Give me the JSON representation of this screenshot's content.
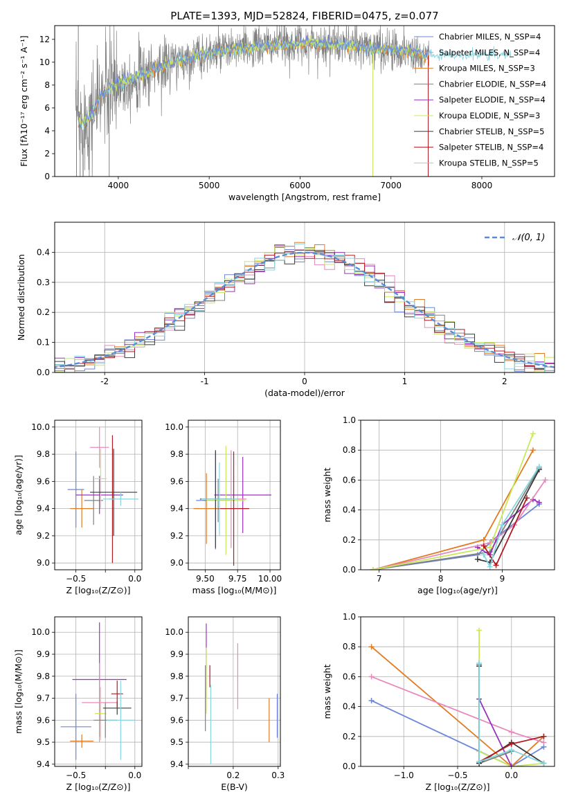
{
  "colors": {
    "blue": "#6b86d8",
    "orange": "#e07b24",
    "gray": "#808080",
    "purple": "#9a30c0",
    "pink": "#e887bb",
    "lime": "#c8e85a",
    "dark": "#3a3a3a",
    "red": "#b01a20",
    "cyan": "#86d6e0",
    "dash": "#5b8bd4"
  },
  "chart_data": [
    {
      "type": "line",
      "title": "PLATE=1393, MJD=52824, FIBERID=0475, z=0.077",
      "xlabel": "wavelength [Angstrom, rest frame]",
      "ylabel": "Flux [fλ10⁻¹⁷ erg cm⁻² s⁻¹ A⁻¹]",
      "xlim": [
        3300,
        8800
      ],
      "ylim": [
        0,
        13.2
      ],
      "xticks": [
        4000,
        5000,
        6000,
        7000,
        8000
      ],
      "yticks": [
        0,
        2,
        4,
        6,
        8,
        10,
        12
      ],
      "legend_position": "right",
      "legend": [
        {
          "label": "Chabrier MILES, N_SSP=4",
          "color": "blue"
        },
        {
          "label": "Salpeter MILES, N_SSP=4",
          "color": "pink"
        },
        {
          "label": "Kroupa MILES, N_SSP=3",
          "color": "orange"
        },
        {
          "label": "Chabrier ELODIE, N_SSP=4",
          "color": "gray"
        },
        {
          "label": "Salpeter ELODIE, N_SSP=4",
          "color": "purple"
        },
        {
          "label": "Kroupa ELODIE, N_SSP=3",
          "color": "lime"
        },
        {
          "label": "Chabrier STELIB, N_SSP=5",
          "color": "dark"
        },
        {
          "label": "Salpeter STELIB, N_SSP=4",
          "color": "red"
        },
        {
          "label": "Kroupa STELIB, N_SSP=5",
          "color": "cyan"
        }
      ],
      "continuum": {
        "x": [
          3550,
          3600,
          3700,
          3800,
          3900,
          4000,
          4100,
          4200,
          4300,
          4400,
          4500,
          4700,
          4900,
          5100,
          5300,
          5500,
          5700,
          5900,
          6100,
          6300,
          6500,
          6700,
          6900,
          7100,
          7300,
          7400
        ],
        "y": [
          5.0,
          4.6,
          5.3,
          7.0,
          7.7,
          8.1,
          8.4,
          8.7,
          9.0,
          9.4,
          9.7,
          10.2,
          10.6,
          10.9,
          11.1,
          11.3,
          11.5,
          11.6,
          11.7,
          11.6,
          11.5,
          11.3,
          11.2,
          11.0,
          10.8,
          10.7
        ]
      },
      "data_x_range": [
        3530,
        7420
      ],
      "model_x_range": [
        3560,
        8320
      ]
    },
    {
      "type": "step",
      "xlabel": "(data-model)/error",
      "ylabel": "Normed distribution",
      "xlim": [
        -2.5,
        2.5
      ],
      "ylim": [
        0,
        0.5
      ],
      "xticks": [
        -2,
        -1,
        0,
        1,
        2
      ],
      "yticks": [
        0.0,
        0.1,
        0.2,
        0.3,
        0.4
      ],
      "legend": [
        {
          "label": "𝒩(0, 1)",
          "color": "dash"
        }
      ],
      "series": "9 histogram step curves, one per model, close to N(0,1)"
    },
    {
      "type": "errorbar",
      "xlabel": "Z [log₁₀(Z/Z⊙)]",
      "ylabel": "age  [log₁₀(age/yr)]",
      "xlim": [
        -0.68,
        0.06
      ],
      "ylim": [
        8.95,
        10.05
      ],
      "xticks": [
        -0.5,
        -0.25,
        0.0
      ],
      "xticklabels": [
        "−0.5",
        "",
        "0.0"
      ],
      "yticks": [
        9.0,
        9.2,
        9.4,
        9.6,
        9.8,
        10.0
      ],
      "points": [
        {
          "c": "blue",
          "x": -0.5,
          "xe": 0.07,
          "y": 9.54,
          "ye": 0.28
        },
        {
          "c": "orange",
          "x": -0.45,
          "xe": 0.1,
          "y": 9.4,
          "ye": 0.14
        },
        {
          "c": "gray",
          "x": -0.35,
          "xe": 0.08,
          "y": 9.46,
          "ye": 0.18
        },
        {
          "c": "purple",
          "x": -0.3,
          "xe": 0.2,
          "y": 9.5,
          "ye": 0.14
        },
        {
          "c": "pink",
          "x": -0.3,
          "xe": 0.08,
          "y": 9.85,
          "ye": 0.15
        },
        {
          "c": "lime",
          "x": -0.29,
          "xe": 0.05,
          "y": 9.62,
          "ye": 0.22
        },
        {
          "c": "dark",
          "x": -0.18,
          "xe": 0.2,
          "y": 9.52,
          "ye": 0.32
        },
        {
          "c": "red",
          "x": -0.19,
          "xe": 0.03,
          "y": 9.47,
          "ye": 0.47
        },
        {
          "c": "cyan",
          "x": -0.12,
          "xe": 0.15,
          "y": 9.47,
          "ye": 0.05
        }
      ]
    },
    {
      "type": "errorbar",
      "xlabel": "mass [log₁₀(M/M⊙)]",
      "xlim": [
        9.37,
        10.08
      ],
      "ylim": [
        8.95,
        10.05
      ],
      "xticks": [
        9.5,
        9.75,
        10.0
      ],
      "xticklabels": [
        "9.50",
        "9.75",
        "10.00"
      ],
      "yticks": [
        9.0,
        9.2,
        9.4,
        9.6,
        9.8,
        10.0
      ],
      "points": [
        {
          "c": "blue",
          "x": 9.58,
          "xe": 0.15,
          "y": 9.46,
          "ye": 0.36
        },
        {
          "c": "orange",
          "x": 9.51,
          "xe": 0.1,
          "y": 9.4,
          "ye": 0.26
        },
        {
          "c": "gray",
          "x": 9.6,
          "xe": 0.12,
          "y": 9.46,
          "ye": 0.16
        },
        {
          "c": "purple",
          "x": 9.79,
          "xe": 0.22,
          "y": 9.5,
          "ye": 0.28
        },
        {
          "c": "pink",
          "x": 9.7,
          "xe": 0.12,
          "y": 9.47,
          "ye": 0.36
        },
        {
          "c": "lime",
          "x": 9.66,
          "xe": 0.15,
          "y": 9.46,
          "ye": 0.4
        },
        {
          "c": "dark",
          "x": 9.58,
          "xe": 0.12,
          "y": 9.47,
          "ye": 0.36
        },
        {
          "c": "red",
          "x": 9.72,
          "xe": 0.12,
          "y": 9.4,
          "ye": 0.42
        },
        {
          "c": "cyan",
          "x": 9.61,
          "xe": 0.14,
          "y": 9.47,
          "ye": 0.27
        }
      ]
    },
    {
      "type": "line",
      "xlabel": "age  [log₁₀(age/yr)]",
      "ylabel": "mass weight",
      "xlim": [
        6.7,
        9.85
      ],
      "ylim": [
        0,
        1.0
      ],
      "xticks": [
        7,
        8,
        9
      ],
      "yticks": [
        0.0,
        0.2,
        0.4,
        0.6,
        0.8,
        1.0
      ],
      "series": [
        {
          "c": "blue",
          "x": [
            6.9,
            8.6,
            8.85,
            9.6
          ],
          "y": [
            0.0,
            0.1,
            0.2,
            0.44
          ]
        },
        {
          "c": "orange",
          "x": [
            6.9,
            8.7,
            9.5
          ],
          "y": [
            0.0,
            0.2,
            0.8
          ]
        },
        {
          "c": "gray",
          "x": [
            6.9,
            8.8,
            9.6
          ],
          "y": [
            0.0,
            0.12,
            0.68
          ]
        },
        {
          "c": "purple",
          "x": [
            8.6,
            8.8,
            9.0,
            9.5,
            9.6
          ],
          "y": [
            0.15,
            0.1,
            0.3,
            0.47,
            0.45
          ]
        },
        {
          "c": "pink",
          "x": [
            6.9,
            8.8,
            9.2,
            9.7
          ],
          "y": [
            0.0,
            0.18,
            0.3,
            0.6
          ]
        },
        {
          "c": "lime",
          "x": [
            6.9,
            8.8,
            9.5
          ],
          "y": [
            0.0,
            0.15,
            0.91
          ]
        },
        {
          "c": "dark",
          "x": [
            8.6,
            8.8,
            9.6
          ],
          "y": [
            0.07,
            0.05,
            0.67
          ]
        },
        {
          "c": "red",
          "x": [
            8.7,
            8.9,
            9.4
          ],
          "y": [
            0.16,
            0.03,
            0.48
          ]
        },
        {
          "c": "cyan",
          "x": [
            8.7,
            8.8,
            9.0,
            9.6
          ],
          "y": [
            0.1,
            0.02,
            0.3,
            0.69
          ]
        }
      ]
    },
    {
      "type": "errorbar",
      "xlabel": "Z [log₁₀(Z/Z⊙)]",
      "ylabel": "mass [log₁₀(M/M⊙)]",
      "xlim": [
        -0.68,
        0.06
      ],
      "ylim": [
        9.39,
        10.07
      ],
      "xticks": [
        -0.5,
        -0.25,
        0.0
      ],
      "xticklabels": [
        "−0.5",
        "",
        "0.0"
      ],
      "yticks": [
        9.4,
        9.5,
        9.6,
        9.7,
        9.8,
        9.9,
        10.0
      ],
      "points": [
        {
          "c": "blue",
          "x": -0.5,
          "xe": 0.13,
          "y": 9.57,
          "ye": 0.15
        },
        {
          "c": "orange",
          "x": -0.45,
          "xe": 0.1,
          "y": 9.505,
          "ye": 0.03
        },
        {
          "c": "purple",
          "x": -0.3,
          "xe": 0.23,
          "y": 9.785,
          "ye": 0.26
        },
        {
          "c": "pink",
          "x": -0.3,
          "xe": 0.15,
          "y": 9.68,
          "ye": 0.18
        },
        {
          "c": "lime",
          "x": -0.29,
          "xe": 0.05,
          "y": 9.63,
          "ye": 0.12
        },
        {
          "c": "gray",
          "x": -0.25,
          "xe": 0.1,
          "y": 9.6,
          "ye": 0.08
        },
        {
          "c": "dark",
          "x": -0.15,
          "xe": 0.12,
          "y": 9.655,
          "ye": 0.03
        },
        {
          "c": "red",
          "x": -0.15,
          "xe": 0.05,
          "y": 9.72,
          "ye": 0.06
        },
        {
          "c": "cyan",
          "x": -0.12,
          "xe": 0.12,
          "y": 9.6,
          "ye": 0.18
        }
      ]
    },
    {
      "type": "errorbar",
      "xlabel": "E(B-V)",
      "xlim": [
        0.1,
        0.305
      ],
      "ylim": [
        9.39,
        10.07
      ],
      "xticks": [
        0.1,
        0.2,
        0.3
      ],
      "xticklabels": [
        "",
        "0.2",
        "0.3"
      ],
      "yticks": [
        9.4,
        9.5,
        9.6,
        9.7,
        9.8,
        9.9,
        10.0
      ],
      "points": [
        {
          "c": "purple",
          "x": 0.14,
          "y": 9.87,
          "ye": 0.17
        },
        {
          "c": "gray",
          "x": 0.138,
          "y": 9.7,
          "ye": 0.15
        },
        {
          "c": "lime",
          "x": 0.14,
          "y": 9.78,
          "ye": 0.15
        },
        {
          "c": "red",
          "x": 0.148,
          "y": 9.8,
          "ye": 0.05
        },
        {
          "c": "cyan",
          "x": 0.15,
          "y": 9.58,
          "ye": 0.18
        },
        {
          "c": "pink",
          "x": 0.21,
          "y": 9.8,
          "ye": 0.15
        },
        {
          "c": "orange",
          "x": 0.28,
          "y": 9.6,
          "ye": 0.1
        },
        {
          "c": "blue",
          "x": 0.298,
          "y": 9.62,
          "ye": 0.1
        }
      ]
    },
    {
      "type": "line",
      "xlabel": "Z [log₁₀(Z/Z⊙)]",
      "ylabel": "mass weight",
      "xlim": [
        -1.4,
        0.4
      ],
      "ylim": [
        0,
        1.0
      ],
      "xticks": [
        -1.0,
        -0.5,
        0.0
      ],
      "yticks": [
        0.0,
        0.2,
        0.4,
        0.6,
        0.8,
        1.0
      ],
      "series": [
        {
          "c": "blue",
          "x": [
            -1.3,
            0.0,
            0.3
          ],
          "y": [
            0.44,
            0.0,
            0.13
          ]
        },
        {
          "c": "orange",
          "x": [
            -1.3,
            0.0,
            0.3
          ],
          "y": [
            0.8,
            0.0,
            0.2
          ]
        },
        {
          "c": "pink",
          "x": [
            -1.3,
            0.0,
            0.3
          ],
          "y": [
            0.6,
            0.23,
            0.16
          ]
        },
        {
          "c": "lime",
          "x": [
            -0.3,
            -0.3,
            0.0,
            0.3
          ],
          "y": [
            0.91,
            0.1,
            0.0,
            0.02
          ]
        },
        {
          "c": "purple",
          "x": [
            -0.3,
            0.0
          ],
          "y": [
            0.45,
            0.0
          ]
        },
        {
          "c": "gray",
          "x": [
            -0.3,
            -0.3,
            0.0
          ],
          "y": [
            0.68,
            0.02,
            0.1
          ]
        },
        {
          "c": "dark",
          "x": [
            -0.3,
            -0.3,
            0.0,
            0.3
          ],
          "y": [
            0.67,
            0.02,
            0.16,
            0.02
          ]
        },
        {
          "c": "red",
          "x": [
            -0.3,
            0.0,
            0.3
          ],
          "y": [
            0.03,
            0.15,
            0.2
          ]
        },
        {
          "c": "cyan",
          "x": [
            -0.3,
            -0.3,
            0.0,
            0.3
          ],
          "y": [
            0.69,
            0.03,
            0.11,
            0.02
          ]
        }
      ]
    }
  ]
}
